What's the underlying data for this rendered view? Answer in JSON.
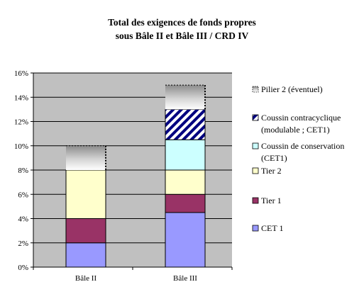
{
  "chart_data": {
    "type": "bar",
    "stacked": true,
    "title_lines": [
      "Total des exigences de fonds propres",
      "sous Bâle II et Bâle III / CRD IV"
    ],
    "categories": [
      "Bâle II",
      "Bâle III"
    ],
    "y_tick_labels": [
      "0%",
      "2%",
      "4%",
      "6%",
      "8%",
      "10%",
      "12%",
      "14%",
      "16%"
    ],
    "ylim": [
      0,
      16
    ],
    "y_unit": "%",
    "grid": true,
    "legend_position": "right",
    "series": [
      {
        "name": "CET 1",
        "values": [
          2,
          4.5
        ],
        "color": "#9999ff",
        "pattern": "solid"
      },
      {
        "name": "Tier 1",
        "values": [
          2,
          1.5
        ],
        "color": "#993366",
        "pattern": "solid"
      },
      {
        "name": "Tier 2",
        "values": [
          4,
          2
        ],
        "color": "#ffffcc",
        "pattern": "solid"
      },
      {
        "name": "Coussin de conservation (CET1)",
        "legend_lines": [
          "Coussin de conservation",
          "(CET1)"
        ],
        "values": [
          0,
          2.5
        ],
        "color": "#ccffff",
        "pattern": "solid"
      },
      {
        "name": "Coussin contracyclique (modulable ; CET1)",
        "legend_lines": [
          "Coussin contracyclique",
          "(modulable ; CET1)"
        ],
        "values": [
          0,
          2.5
        ],
        "color": "#000080",
        "pattern": "diagonal-stripes"
      },
      {
        "name": "Pilier 2 (éventuel)",
        "values": [
          2,
          2
        ],
        "color": "#808080",
        "pattern": "gradient"
      }
    ]
  },
  "colors": {
    "plot_background": "#c0c0c0",
    "gridline": "#000000",
    "bar_outline": "#000000"
  }
}
